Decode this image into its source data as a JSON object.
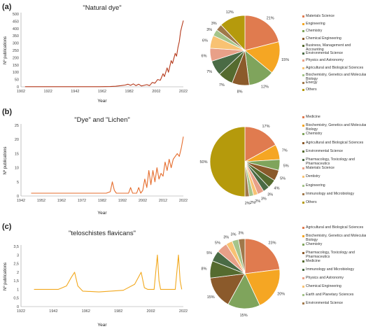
{
  "panels": [
    {
      "label": "(a)",
      "line": {
        "title": "\"Natural dye\"",
        "xlabel": "Year",
        "ylabel": "Nº publications",
        "color": "#b5391b",
        "xlim": [
          1902,
          2022
        ],
        "ylim": [
          0,
          500
        ],
        "xticks": [
          1902,
          1922,
          1942,
          1962,
          1982,
          2002,
          2022
        ],
        "yticks": [
          0,
          50,
          100,
          150,
          200,
          250,
          300,
          350,
          400,
          450,
          500
        ],
        "ytick_labels": [
          "0",
          "50",
          "100",
          "150",
          "200",
          "250",
          "300",
          "350",
          "400",
          "450",
          "500"
        ],
        "points": [
          [
            1905,
            1
          ],
          [
            1930,
            1
          ],
          [
            1960,
            1
          ],
          [
            1968,
            2
          ],
          [
            1972,
            4
          ],
          [
            1976,
            8
          ],
          [
            1979,
            12
          ],
          [
            1981,
            18
          ],
          [
            1983,
            10
          ],
          [
            1985,
            20
          ],
          [
            1987,
            8
          ],
          [
            1989,
            18
          ],
          [
            1991,
            6
          ],
          [
            1993,
            10
          ],
          [
            1995,
            15
          ],
          [
            1997,
            8
          ],
          [
            1999,
            30
          ],
          [
            2001,
            25
          ],
          [
            2003,
            50
          ],
          [
            2005,
            45
          ],
          [
            2007,
            90
          ],
          [
            2008,
            70
          ],
          [
            2010,
            130
          ],
          [
            2011,
            100
          ],
          [
            2013,
            180
          ],
          [
            2014,
            160
          ],
          [
            2016,
            230
          ],
          [
            2017,
            210
          ],
          [
            2018,
            270
          ],
          [
            2019,
            310
          ],
          [
            2020,
            380
          ],
          [
            2021,
            420
          ],
          [
            2022,
            455
          ]
        ]
      },
      "pie": {
        "slices": [
          {
            "name": "Materials Science",
            "value": 21,
            "label": "21%",
            "color": "#e07b4f"
          },
          {
            "name": "Engineering",
            "value": 15,
            "label": "15%",
            "color": "#f5a623"
          },
          {
            "name": "Chemistry",
            "value": 12,
            "label": "12%",
            "color": "#7fa45c"
          },
          {
            "name": "Chemical Engineering",
            "value": 8,
            "label": "8%",
            "color": "#8b5a2b"
          },
          {
            "name": "Business, Management and Accounting",
            "value": 7,
            "label": "7%",
            "color": "#556b2f"
          },
          {
            "name": "Environmental Science",
            "value": 7,
            "label": "7%",
            "color": "#4a6b45"
          },
          {
            "name": "Physics and Astronomy",
            "value": 6,
            "label": "6%",
            "color": "#e8a088"
          },
          {
            "name": "Agricultural and Biological Sciences",
            "value": 6,
            "label": "6%",
            "color": "#f8c273"
          },
          {
            "name": "Biochemistry, Genetics and Molecular Biology",
            "value": 3,
            "label": "3%",
            "color": "#a5c48a"
          },
          {
            "name": "Energy",
            "value": 3,
            "label": "3%",
            "color": "#a0784a"
          },
          {
            "name": "Others",
            "value": 12,
            "label": "12%",
            "color": "#b59a0c"
          }
        ]
      }
    },
    {
      "label": "(b)",
      "line": {
        "title": "\"Dye\" and \"Lichen\"",
        "xlabel": "Year",
        "ylabel": "Nº publications",
        "color": "#e56c2c",
        "xlim": [
          1942,
          2022
        ],
        "ylim": [
          0,
          25
        ],
        "xticks": [
          1952,
          1962,
          1972,
          1982,
          1992,
          2002,
          2012,
          2022
        ],
        "xtick_labels_extra": [
          1942
        ],
        "yticks": [
          0,
          5,
          10,
          15,
          20,
          25
        ],
        "ytick_labels": [
          "0",
          "5",
          "10",
          "15",
          "20",
          "25"
        ],
        "points": [
          [
            1947,
            1
          ],
          [
            1960,
            1
          ],
          [
            1975,
            1
          ],
          [
            1984,
            1
          ],
          [
            1986,
            1.5
          ],
          [
            1987,
            5
          ],
          [
            1988,
            2
          ],
          [
            1989,
            1
          ],
          [
            1993,
            1
          ],
          [
            1995,
            1
          ],
          [
            1996,
            3
          ],
          [
            1997,
            1
          ],
          [
            1999,
            1
          ],
          [
            2000,
            3
          ],
          [
            2001,
            1
          ],
          [
            2002,
            2
          ],
          [
            2003,
            6
          ],
          [
            2004,
            3
          ],
          [
            2005,
            9
          ],
          [
            2006,
            4
          ],
          [
            2007,
            9
          ],
          [
            2008,
            5
          ],
          [
            2009,
            10
          ],
          [
            2010,
            6
          ],
          [
            2011,
            8
          ],
          [
            2012,
            7
          ],
          [
            2013,
            12
          ],
          [
            2014,
            9
          ],
          [
            2015,
            13
          ],
          [
            2016,
            10
          ],
          [
            2017,
            13
          ],
          [
            2018,
            14
          ],
          [
            2019,
            15
          ],
          [
            2020,
            14
          ],
          [
            2021,
            17
          ],
          [
            2022,
            21
          ]
        ]
      },
      "pie": {
        "slices": [
          {
            "name": "Medicine",
            "value": 17,
            "label": "17%",
            "color": "#e07b4f"
          },
          {
            "name": "Biochemistry, Genetics and Molecular Biology",
            "value": 7,
            "label": "7%",
            "color": "#f5a623"
          },
          {
            "name": "Chemistry",
            "value": 5,
            "label": "5%",
            "color": "#7fa45c"
          },
          {
            "name": "Agricultural and Biological Sciences",
            "value": 5,
            "label": "5%",
            "color": "#8b5a2b"
          },
          {
            "name": "Environmental Science",
            "value": 4,
            "label": "4%",
            "color": "#556b2f"
          },
          {
            "name": "Pharmacology, Toxicology and Pharmaceutics",
            "value": 3,
            "label": "3%",
            "color": "#4a6b45"
          },
          {
            "name": "Materials Science",
            "value": 3,
            "label": "3%",
            "color": "#e8a088"
          },
          {
            "name": "Dentistry",
            "value": 2,
            "label": "2%",
            "color": "#f8c273"
          },
          {
            "name": "Engineering",
            "value": 2,
            "label": "2%",
            "color": "#a5c48a"
          },
          {
            "name": "Immunology and Microbiology",
            "value": 2,
            "label": "2%",
            "color": "#a0784a"
          },
          {
            "name": "Others",
            "value": 50,
            "label": "50%",
            "color": "#b59a0c"
          }
        ]
      }
    },
    {
      "label": "(c)",
      "line": {
        "title": "\"teloschistes flavicans\"",
        "xlabel": "Year",
        "ylabel": "Nº publications",
        "color": "#f2a81d",
        "xlim": [
          1922,
          2022
        ],
        "ylim": [
          0,
          3.5
        ],
        "xticks": [
          1922,
          1942,
          1962,
          1982,
          2002,
          2022
        ],
        "xtick_labels_extra": [],
        "yticks": [
          0,
          0.5,
          1,
          1.5,
          2,
          2.5,
          3,
          3.5
        ],
        "ytick_labels": [
          "0",
          "0,5",
          "1",
          "1,5",
          "2",
          "2,5",
          "3",
          "3,5"
        ],
        "points": [
          [
            1930,
            1
          ],
          [
            1945,
            1
          ],
          [
            1950,
            1.2
          ],
          [
            1953,
            1.7
          ],
          [
            1955,
            2
          ],
          [
            1957,
            1.2
          ],
          [
            1960,
            0.9
          ],
          [
            1970,
            0.85
          ],
          [
            1985,
            0.95
          ],
          [
            1992,
            1.3
          ],
          [
            1996,
            2
          ],
          [
            1998,
            1.1
          ],
          [
            2000,
            1
          ],
          [
            2004,
            1
          ],
          [
            2006,
            3
          ],
          [
            2007,
            1.5
          ],
          [
            2008,
            1
          ],
          [
            2014,
            1
          ],
          [
            2017,
            1
          ],
          [
            2019,
            3
          ],
          [
            2020,
            1.5
          ],
          [
            2021,
            1
          ]
        ]
      },
      "pie": {
        "slices": [
          {
            "name": "Agricultural and Biological Sciences",
            "value": 23,
            "label": "23%",
            "color": "#e07b4f"
          },
          {
            "name": "Biochemistry, Genetics and Molecular Biology",
            "value": 20,
            "label": "20%",
            "color": "#f5a623"
          },
          {
            "name": "Chemistry",
            "value": 15,
            "label": "15%",
            "color": "#7fa45c"
          },
          {
            "name": "Pharmacology, Toxicology and Pharmaceutics",
            "value": 15,
            "label": "15%",
            "color": "#8b5a2b"
          },
          {
            "name": "Medicine",
            "value": 8,
            "label": "8%",
            "color": "#556b2f"
          },
          {
            "name": "Immunology and Microbiology",
            "value": 5,
            "label": "5%",
            "color": "#4a6b45"
          },
          {
            "name": "Physics and Astronomy",
            "value": 5,
            "label": "5%",
            "color": "#e8a088"
          },
          {
            "name": "Chemical Engineering",
            "value": 3,
            "label": "3%",
            "color": "#f8c273"
          },
          {
            "name": "Earth and Planetary Sciences",
            "value": 3,
            "label": "3%",
            "color": "#a5c48a"
          },
          {
            "name": "Environmental Science",
            "value": 3,
            "label": "3%",
            "color": "#a0784a"
          }
        ]
      }
    }
  ],
  "chart_data": [
    {
      "type": "line",
      "title": "\"Natural dye\"",
      "xlabel": "Year",
      "ylabel": "Nº publications",
      "xlim": [
        1902,
        2022
      ],
      "ylim": [
        0,
        500
      ]
    },
    {
      "type": "pie",
      "labels": [
        "Materials Science",
        "Engineering",
        "Chemistry",
        "Chemical Engineering",
        "Business, Management and Accounting",
        "Environmental Science",
        "Physics and Astronomy",
        "Agricultural and Biological Sciences",
        "Biochemistry, Genetics and Molecular Biology",
        "Energy",
        "Others"
      ],
      "values": [
        21,
        15,
        12,
        8,
        7,
        7,
        6,
        6,
        3,
        3,
        12
      ]
    },
    {
      "type": "line",
      "title": "\"Dye\" and \"Lichen\"",
      "xlabel": "Year",
      "ylabel": "Nº publications",
      "xlim": [
        1942,
        2022
      ],
      "ylim": [
        0,
        25
      ]
    },
    {
      "type": "pie",
      "labels": [
        "Medicine",
        "Biochemistry, Genetics and Molecular Biology",
        "Chemistry",
        "Agricultural and Biological Sciences",
        "Environmental Science",
        "Pharmacology, Toxicology and Pharmaceutics",
        "Materials Science",
        "Dentistry",
        "Engineering",
        "Immunology and Microbiology",
        "Others"
      ],
      "values": [
        17,
        7,
        5,
        5,
        4,
        3,
        3,
        2,
        2,
        2,
        50
      ]
    },
    {
      "type": "line",
      "title": "\"teloschistes flavicans\"",
      "xlabel": "Year",
      "ylabel": "Nº publications",
      "xlim": [
        1922,
        2022
      ],
      "ylim": [
        0,
        3.5
      ]
    },
    {
      "type": "pie",
      "labels": [
        "Agricultural and Biological Sciences",
        "Biochemistry, Genetics and Molecular Biology",
        "Chemistry",
        "Pharmacology, Toxicology and Pharmaceutics",
        "Medicine",
        "Immunology and Microbiology",
        "Physics and Astronomy",
        "Chemical Engineering",
        "Earth and Planetary Sciences",
        "Environmental Science"
      ],
      "values": [
        23,
        20,
        15,
        15,
        8,
        5,
        5,
        3,
        3,
        3
      ]
    }
  ]
}
